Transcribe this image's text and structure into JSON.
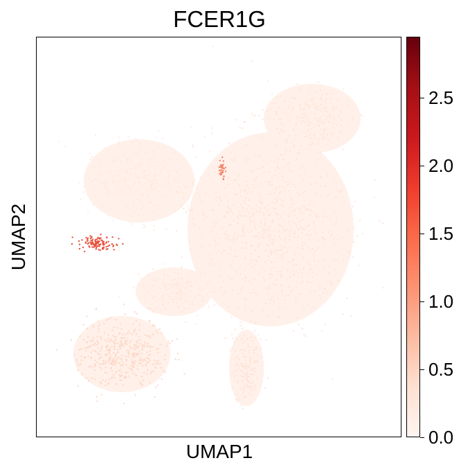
{
  "chart_data": {
    "type": "scatter",
    "title": "FCER1G",
    "xlabel": "UMAP1",
    "ylabel": "UMAP2",
    "colorbar": {
      "colormap": "Reds",
      "range": [
        0.0,
        2.95
      ],
      "ticks": [
        0.0,
        0.5,
        1.0,
        1.5,
        2.0,
        2.5
      ],
      "tick_labels": [
        "0.0",
        "0.5",
        "1.0",
        "1.5",
        "2.0",
        "2.5"
      ]
    },
    "grid": false,
    "ticks_visible": false
  },
  "colors": {
    "low": "#fff5f0",
    "high": "#67000d",
    "background": "#ffffff"
  }
}
